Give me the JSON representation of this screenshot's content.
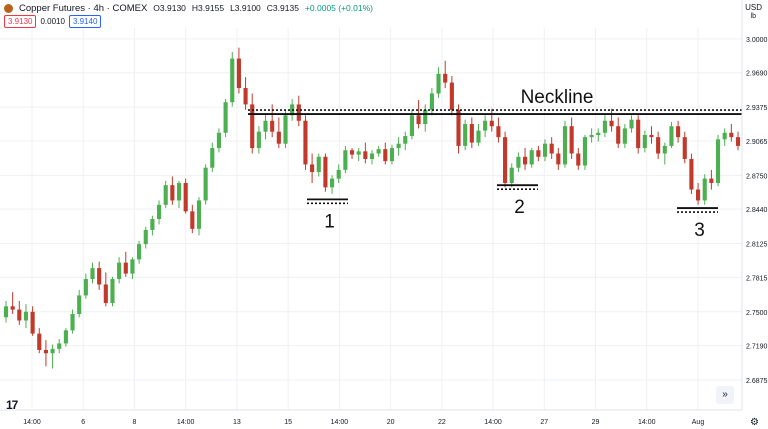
{
  "header": {
    "title": "Copper Futures · 4h · COMEX",
    "open": "O3.9130",
    "high": "H3.9155",
    "low": "L3.9100",
    "close": "C3.9135",
    "change": "+0.0005 (+0.01%)",
    "sell_price": "3.9130",
    "spread": "0.0010",
    "buy_price": "3.9140",
    "currency": "USD",
    "unit": "lb"
  },
  "controls": {
    "nav_icon": "double-chevron-right-icon",
    "settings_icon": "gear-icon",
    "logo": "17"
  },
  "colors": {
    "up": "#4caf50",
    "down": "#c0392b",
    "grid": "#eef0f3",
    "axis_text": "#131722"
  },
  "chart_data": {
    "type": "candlestick",
    "ylim": [
      2.66,
      3.01
    ],
    "y_ticks": [
      "3.0000",
      "2.9690",
      "2.9375",
      "2.9065",
      "2.8750",
      "2.8440",
      "2.8125",
      "2.7815",
      "2.7500",
      "2.7190",
      "2.6875"
    ],
    "x_ticks": [
      "14:00",
      "6",
      "8",
      "14:00",
      "13",
      "15",
      "14:00",
      "20",
      "22",
      "14:00",
      "27",
      "29",
      "14:00",
      "Aug"
    ],
    "annotations": {
      "neckline": {
        "label": "Neckline",
        "y": 2.933
      },
      "bottoms": [
        {
          "label": "1",
          "y": 2.853
        },
        {
          "label": "2",
          "y": 2.866
        },
        {
          "label": "3",
          "y": 2.845
        }
      ]
    },
    "candles": [
      [
        2.745,
        2.76,
        2.74,
        2.755
      ],
      [
        2.755,
        2.768,
        2.748,
        2.752
      ],
      [
        2.752,
        2.76,
        2.738,
        2.742
      ],
      [
        2.742,
        2.757,
        2.735,
        2.75
      ],
      [
        2.75,
        2.755,
        2.728,
        2.73
      ],
      [
        2.73,
        2.735,
        2.712,
        2.715
      ],
      [
        2.715,
        2.724,
        2.7,
        2.712
      ],
      [
        2.712,
        2.72,
        2.698,
        2.716
      ],
      [
        2.716,
        2.725,
        2.712,
        2.721
      ],
      [
        2.721,
        2.735,
        2.718,
        2.733
      ],
      [
        2.733,
        2.752,
        2.73,
        2.748
      ],
      [
        2.748,
        2.77,
        2.745,
        2.765
      ],
      [
        2.765,
        2.785,
        2.762,
        2.78
      ],
      [
        2.78,
        2.795,
        2.776,
        2.79
      ],
      [
        2.79,
        2.796,
        2.77,
        2.775
      ],
      [
        2.775,
        2.786,
        2.755,
        2.758
      ],
      [
        2.758,
        2.782,
        2.755,
        2.78
      ],
      [
        2.78,
        2.8,
        2.776,
        2.795
      ],
      [
        2.795,
        2.805,
        2.782,
        2.785
      ],
      [
        2.785,
        2.8,
        2.78,
        2.798
      ],
      [
        2.798,
        2.815,
        2.794,
        2.812
      ],
      [
        2.812,
        2.828,
        2.808,
        2.825
      ],
      [
        2.825,
        2.838,
        2.82,
        2.835
      ],
      [
        2.835,
        2.852,
        2.83,
        2.848
      ],
      [
        2.848,
        2.87,
        2.845,
        2.866
      ],
      [
        2.866,
        2.874,
        2.848,
        2.852
      ],
      [
        2.852,
        2.87,
        2.845,
        2.868
      ],
      [
        2.868,
        2.872,
        2.84,
        2.842
      ],
      [
        2.842,
        2.848,
        2.822,
        2.826
      ],
      [
        2.826,
        2.855,
        2.82,
        2.852
      ],
      [
        2.852,
        2.885,
        2.848,
        2.882
      ],
      [
        2.882,
        2.905,
        2.878,
        2.9
      ],
      [
        2.9,
        2.918,
        2.896,
        2.914
      ],
      [
        2.914,
        2.945,
        2.91,
        2.942
      ],
      [
        2.942,
        2.988,
        2.938,
        2.982
      ],
      [
        2.982,
        2.992,
        2.95,
        2.955
      ],
      [
        2.955,
        2.965,
        2.935,
        2.94
      ],
      [
        2.94,
        2.95,
        2.895,
        2.9
      ],
      [
        2.9,
        2.92,
        2.895,
        2.915
      ],
      [
        2.915,
        2.932,
        2.908,
        2.925
      ],
      [
        2.925,
        2.94,
        2.91,
        2.915
      ],
      [
        2.915,
        2.928,
        2.9,
        2.904
      ],
      [
        2.904,
        2.935,
        2.9,
        2.93
      ],
      [
        2.93,
        2.945,
        2.925,
        2.94
      ],
      [
        2.94,
        2.948,
        2.92,
        2.925
      ],
      [
        2.925,
        2.93,
        2.88,
        2.885
      ],
      [
        2.885,
        2.895,
        2.868,
        2.878
      ],
      [
        2.878,
        2.895,
        2.874,
        2.892
      ],
      [
        2.892,
        2.895,
        2.86,
        2.864
      ],
      [
        2.864,
        2.875,
        2.858,
        2.872
      ],
      [
        2.872,
        2.885,
        2.868,
        2.88
      ],
      [
        2.88,
        2.902,
        2.877,
        2.898
      ],
      [
        2.898,
        2.9,
        2.89,
        2.894
      ],
      [
        2.894,
        2.9,
        2.888,
        2.897
      ],
      [
        2.897,
        2.905,
        2.886,
        2.89
      ],
      [
        2.89,
        2.898,
        2.885,
        2.895
      ],
      [
        2.895,
        2.902,
        2.892,
        2.899
      ],
      [
        2.899,
        2.905,
        2.885,
        2.888
      ],
      [
        2.888,
        2.903,
        2.885,
        2.9
      ],
      [
        2.9,
        2.91,
        2.893,
        2.904
      ],
      [
        2.904,
        2.915,
        2.898,
        2.911
      ],
      [
        2.911,
        2.935,
        2.908,
        2.93
      ],
      [
        2.93,
        2.944,
        2.918,
        2.922
      ],
      [
        2.922,
        2.94,
        2.915,
        2.935
      ],
      [
        2.935,
        2.955,
        2.93,
        2.95
      ],
      [
        2.95,
        2.974,
        2.946,
        2.968
      ],
      [
        2.968,
        2.98,
        2.955,
        2.96
      ],
      [
        2.96,
        2.966,
        2.93,
        2.935
      ],
      [
        2.935,
        2.94,
        2.895,
        2.902
      ],
      [
        2.902,
        2.926,
        2.898,
        2.922
      ],
      [
        2.922,
        2.928,
        2.9,
        2.905
      ],
      [
        2.905,
        2.922,
        2.902,
        2.916
      ],
      [
        2.916,
        2.93,
        2.91,
        2.925
      ],
      [
        2.925,
        2.936,
        2.915,
        2.92
      ],
      [
        2.92,
        2.928,
        2.905,
        2.91
      ],
      [
        2.91,
        2.915,
        2.864,
        2.868
      ],
      [
        2.868,
        2.886,
        2.864,
        2.882
      ],
      [
        2.882,
        2.896,
        2.878,
        2.892
      ],
      [
        2.892,
        2.9,
        2.88,
        2.885
      ],
      [
        2.885,
        2.9,
        2.882,
        2.898
      ],
      [
        2.898,
        2.902,
        2.888,
        2.892
      ],
      [
        2.892,
        2.908,
        2.888,
        2.904
      ],
      [
        2.904,
        2.91,
        2.89,
        2.895
      ],
      [
        2.895,
        2.9,
        2.88,
        2.885
      ],
      [
        2.885,
        2.925,
        2.882,
        2.92
      ],
      [
        2.92,
        2.928,
        2.89,
        2.895
      ],
      [
        2.895,
        2.9,
        2.88,
        2.884
      ],
      [
        2.884,
        2.912,
        2.88,
        2.91
      ],
      [
        2.91,
        2.918,
        2.905,
        2.912
      ],
      [
        2.912,
        2.918,
        2.906,
        2.914
      ],
      [
        2.914,
        2.93,
        2.91,
        2.925
      ],
      [
        2.925,
        2.936,
        2.915,
        2.92
      ],
      [
        2.92,
        2.928,
        2.9,
        2.904
      ],
      [
        2.904,
        2.922,
        2.9,
        2.918
      ],
      [
        2.918,
        2.93,
        2.914,
        2.926
      ],
      [
        2.926,
        2.93,
        2.895,
        2.9
      ],
      [
        2.9,
        2.916,
        2.896,
        2.912
      ],
      [
        2.912,
        2.92,
        2.904,
        2.91
      ],
      [
        2.91,
        2.915,
        2.89,
        2.895
      ],
      [
        2.895,
        2.905,
        2.885,
        2.902
      ],
      [
        2.902,
        2.924,
        2.9,
        2.92
      ],
      [
        2.92,
        2.925,
        2.905,
        2.91
      ],
      [
        2.91,
        2.915,
        2.886,
        2.89
      ],
      [
        2.89,
        2.895,
        2.858,
        2.862
      ],
      [
        2.862,
        2.868,
        2.848,
        2.852
      ],
      [
        2.852,
        2.876,
        2.848,
        2.872
      ],
      [
        2.872,
        2.88,
        2.862,
        2.868
      ],
      [
        2.868,
        2.912,
        2.865,
        2.908
      ],
      [
        2.908,
        2.918,
        2.902,
        2.914
      ],
      [
        2.914,
        2.922,
        2.906,
        2.91
      ],
      [
        2.91,
        2.915,
        2.898,
        2.902
      ]
    ]
  }
}
